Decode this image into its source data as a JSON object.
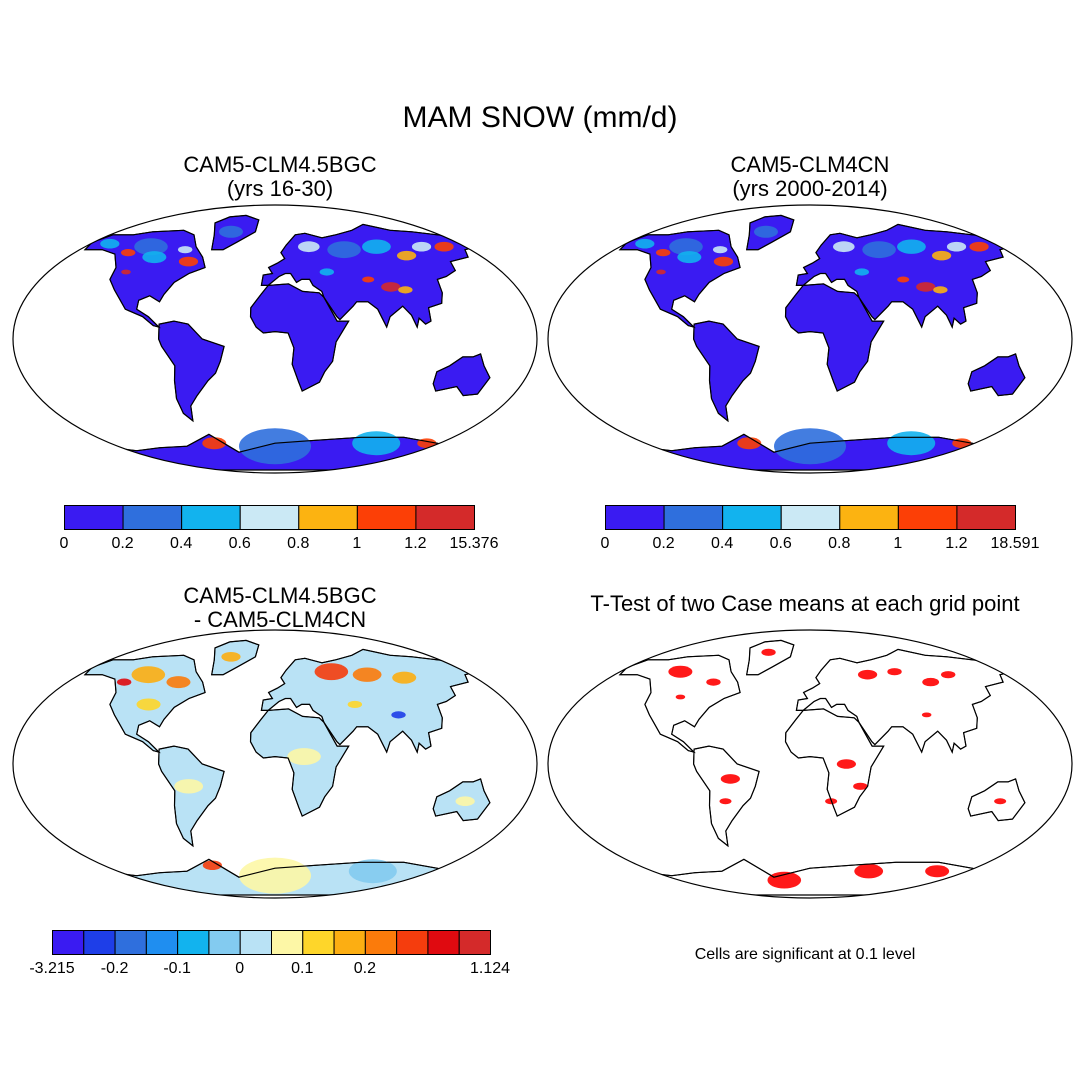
{
  "title": "MAM SNOW (mm/d)",
  "panels": [
    {
      "id": "p1",
      "title_lines": [
        "CAM5-CLM4.5BGC",
        "(yrs 16-30)"
      ]
    },
    {
      "id": "p2",
      "title_lines": [
        "CAM5-CLM4CN",
        "(yrs 2000-2014)"
      ]
    },
    {
      "id": "p3",
      "title_lines": [
        "CAM5-CLM4.5BGC",
        "- CAM5-CLM4CN"
      ]
    },
    {
      "id": "p4",
      "title_lines": [
        "T-Test of two Case means at each grid point"
      ]
    }
  ],
  "colorbars": [
    {
      "id": "cb1",
      "colors": [
        "#3a1bf2",
        "#2f6fdd",
        "#12b3ee",
        "#cbe9f5",
        "#fcb311",
        "#fc3f06",
        "#d42a2a"
      ],
      "labels": [
        "0",
        "0.2",
        "0.4",
        "0.6",
        "0.8",
        "1",
        "1.2",
        "15.376"
      ]
    },
    {
      "id": "cb2",
      "colors": [
        "#3a1bf2",
        "#2f6fdd",
        "#12b3ee",
        "#cbe9f5",
        "#fcb311",
        "#fc3f06",
        "#d42a2a"
      ],
      "labels": [
        "0",
        "0.2",
        "0.4",
        "0.6",
        "0.8",
        "1",
        "1.2",
        "18.591"
      ]
    },
    {
      "id": "cb3",
      "colors": [
        "#3a1bf2",
        "#1e3ee8",
        "#2f6fdd",
        "#1f8ef0",
        "#12b3ee",
        "#83cbf0",
        "#b9e2f5",
        "#fdf7a6",
        "#fed62a",
        "#fcae12",
        "#fb7b0b",
        "#f53d0d",
        "#e00a10",
        "#d42a2a"
      ],
      "labels": [
        "-3.215",
        "",
        "-0.2",
        "",
        "-0.1",
        "",
        "0",
        "",
        "0.1",
        "",
        "0.2",
        "",
        "",
        "",
        "1.124"
      ]
    }
  ],
  "significance_note": "Cells are significant at 0.1 level"
}
